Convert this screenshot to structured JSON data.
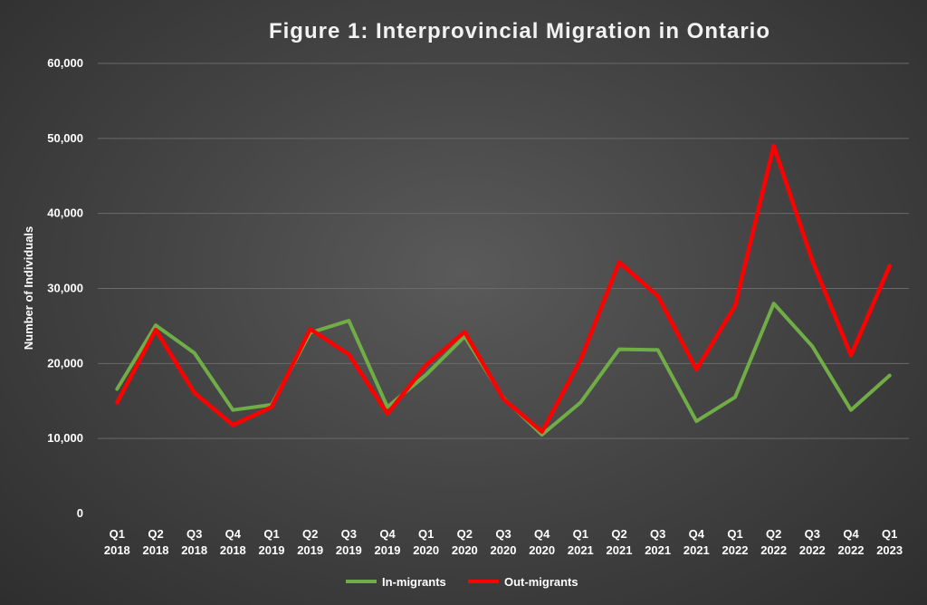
{
  "chart_data": {
    "type": "line",
    "title": "Figure 1: Interprovincial Migration in Ontario",
    "xlabel": "",
    "ylabel": "Number of Individuals",
    "ylim": [
      0,
      60000
    ],
    "yticks": [
      "0",
      "10,000",
      "20,000",
      "30,000",
      "40,000",
      "50,000",
      "60,000"
    ],
    "ytick_values": [
      0,
      10000,
      20000,
      30000,
      40000,
      50000,
      60000
    ],
    "grid": true,
    "legend_placement": "bottom-center",
    "categories": [
      [
        "Q1",
        "2018"
      ],
      [
        "Q2",
        "2018"
      ],
      [
        "Q3",
        "2018"
      ],
      [
        "Q4",
        "2018"
      ],
      [
        "Q1",
        "2019"
      ],
      [
        "Q2",
        "2019"
      ],
      [
        "Q3",
        "2019"
      ],
      [
        "Q4",
        "2019"
      ],
      [
        "Q1",
        "2020"
      ],
      [
        "Q2",
        "2020"
      ],
      [
        "Q3",
        "2020"
      ],
      [
        "Q4",
        "2020"
      ],
      [
        "Q1",
        "2021"
      ],
      [
        "Q2",
        "2021"
      ],
      [
        "Q3",
        "2021"
      ],
      [
        "Q4",
        "2021"
      ],
      [
        "Q1",
        "2022"
      ],
      [
        "Q2",
        "2022"
      ],
      [
        "Q3",
        "2022"
      ],
      [
        "Q4",
        "2022"
      ],
      [
        "Q1",
        "2023"
      ]
    ],
    "series": [
      {
        "name": "In-migrants",
        "color": "#70ad47",
        "values": [
          16600,
          25100,
          21400,
          13800,
          14500,
          24100,
          25700,
          14200,
          18500,
          23600,
          15400,
          10500,
          14800,
          21900,
          21800,
          12300,
          15500,
          28000,
          22300,
          13800,
          18400
        ]
      },
      {
        "name": "Out-migrants",
        "color": "#ff0000",
        "values": [
          14800,
          24500,
          16100,
          11800,
          14200,
          24600,
          21200,
          13300,
          19800,
          24200,
          15300,
          10900,
          20500,
          33500,
          29000,
          19200,
          27700,
          49000,
          33700,
          21100,
          33000
        ]
      }
    ]
  }
}
